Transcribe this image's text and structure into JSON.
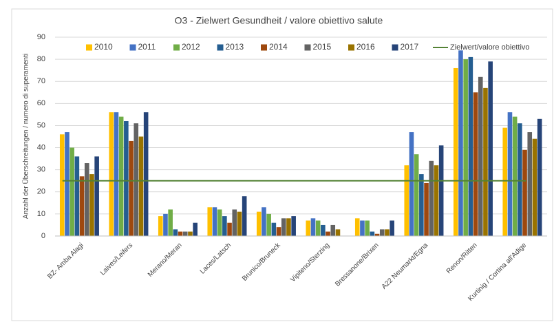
{
  "chart_data": {
    "type": "bar",
    "title": "O3 - Zielwert Gesundheit / valore obiettivo salute",
    "y_label": "Anzahl der Überschreitungen / numero di superamenti",
    "categories": [
      "BZ- Amba Alagi",
      "Laives/Leifers",
      "Merano/Meran",
      "Laces/Latsch",
      "Brunico/Bruneck",
      "Vipiteno/Sterzing",
      "Bressanone/Brixen",
      "A22 Neumarkt/Egna",
      "Renon/Ritten",
      "Kurtinig / Cortina all'Adige"
    ],
    "series": [
      {
        "name": "2010",
        "color": "#ffc000",
        "values": [
          46,
          56,
          9,
          13,
          11,
          7,
          8,
          32,
          76,
          49
        ]
      },
      {
        "name": "2011",
        "color": "#4472c4",
        "values": [
          47,
          56,
          10,
          13,
          13,
          8,
          7,
          47,
          84,
          56
        ]
      },
      {
        "name": "2012",
        "color": "#70ad47",
        "values": [
          40,
          54,
          12,
          12,
          10,
          7,
          7,
          37,
          80,
          54
        ]
      },
      {
        "name": "2013",
        "color": "#255e91",
        "values": [
          36,
          52,
          3,
          9,
          6,
          5,
          2,
          28,
          81,
          51
        ]
      },
      {
        "name": "2014",
        "color": "#9e480e",
        "values": [
          27,
          43,
          2,
          6,
          4,
          2,
          1,
          24,
          65,
          39
        ]
      },
      {
        "name": "2015",
        "color": "#636363",
        "values": [
          33,
          51,
          2,
          12,
          8,
          5,
          3,
          34,
          72,
          47
        ]
      },
      {
        "name": "2016",
        "color": "#997300",
        "values": [
          28,
          45,
          2,
          11,
          8,
          3,
          3,
          32,
          67,
          44
        ]
      },
      {
        "name": "2017",
        "color": "#264478",
        "values": [
          36,
          56,
          6,
          18,
          9,
          null,
          7,
          41,
          79,
          53
        ]
      }
    ],
    "target": {
      "name": "Zielwert/valore obiettivo",
      "value": 25,
      "color": "#548235"
    },
    "ylim": [
      0,
      90
    ],
    "yticks": [
      0,
      10,
      20,
      30,
      40,
      50,
      60,
      70,
      80,
      90
    ],
    "grid": true
  }
}
